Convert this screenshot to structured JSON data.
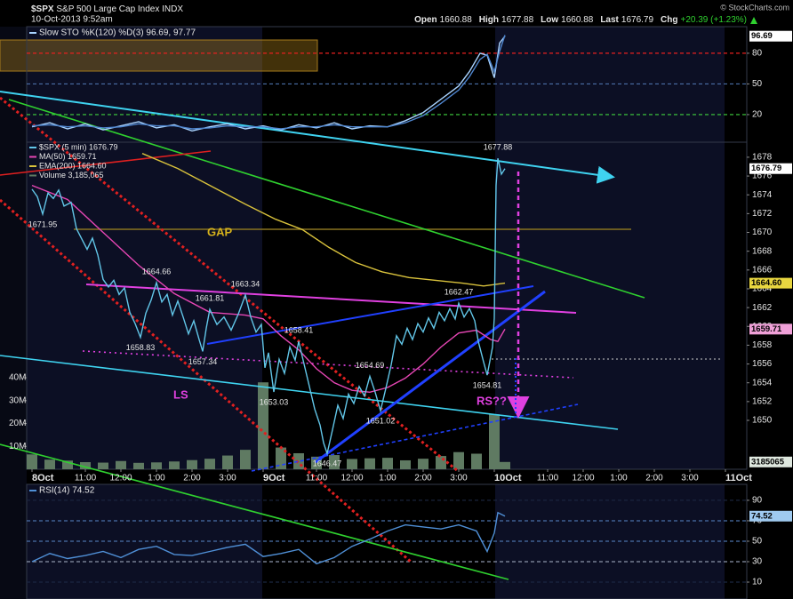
{
  "header": {
    "symbol": "$SPX",
    "title": "S&P 500 Large Cap Index INDX",
    "date": "10-Oct-2013 9:52am",
    "copyright": "© StockCharts.com",
    "quote": [
      {
        "label": "Open",
        "value": 1660.88
      },
      {
        "label": "High",
        "value": 1677.88
      },
      {
        "label": "Low",
        "value": 1660.88
      },
      {
        "label": "Last",
        "value": 1676.79
      },
      {
        "label": "Chg",
        "value": "+20.39 (+1.23%)"
      }
    ]
  },
  "chart_data": [
    {
      "type": "line",
      "legend": "Slow STO %K(120) %D(3) 96.69, 97.77",
      "xlim": [
        -0.15,
        20.1
      ],
      "ylim": [
        -7,
        106
      ],
      "yticks": [
        20,
        50,
        80
      ],
      "grid": true,
      "grid_colors": [
        "#3fd23f",
        "#4a6fa8",
        "#e8201f"
      ],
      "series": [
        {
          "color": "#a9d3ff",
          "tag_color": "#ffffff",
          "last_label": "96.69",
          "x": [
            0,
            0.5,
            1,
            1.5,
            2,
            2.5,
            3,
            3.5,
            4,
            4.5,
            5,
            5.5,
            6,
            6.5,
            7,
            7.5,
            8,
            8.5,
            9,
            9.5,
            10,
            10.5,
            11,
            11.5,
            12,
            12.3,
            12.6,
            12.8,
            13.0,
            13.15,
            13.3
          ],
          "values": [
            8,
            12,
            6,
            11,
            5,
            9,
            13,
            7,
            10,
            4,
            8,
            11,
            6,
            9,
            5,
            10,
            7,
            12,
            6,
            9,
            8,
            14,
            22,
            35,
            48,
            62,
            80,
            78,
            56,
            90,
            96.69
          ]
        },
        {
          "color": "#4f86cf",
          "x": [
            0,
            0.5,
            1,
            1.5,
            2,
            2.5,
            3,
            3.5,
            4,
            4.5,
            5,
            5.5,
            6,
            6.5,
            7,
            7.5,
            8,
            8.5,
            9,
            9.5,
            10,
            10.5,
            11,
            11.5,
            12,
            12.3,
            12.6,
            12.8,
            13.0,
            13.15,
            13.3
          ],
          "values": [
            9,
            10,
            8,
            9,
            7,
            8,
            11,
            9,
            9,
            6,
            7,
            9,
            8,
            8,
            6,
            8,
            8,
            10,
            8,
            8,
            8,
            12,
            19,
            31,
            44,
            57,
            74,
            79,
            62,
            82,
            97.77
          ]
        }
      ]
    },
    {
      "type": "line",
      "xlim": [
        -0.15,
        20.1
      ],
      "ylim": [
        1644.8,
        1679.6
      ],
      "yticks": [
        1650,
        1652,
        1654,
        1656,
        1658,
        1660,
        1662,
        1664,
        1666,
        1668,
        1670,
        1672,
        1674,
        1676,
        1678
      ],
      "y2lim": [
        0,
        143000000
      ],
      "y2ticks": [
        {
          "value": 10000000,
          "label": "10M"
        },
        {
          "value": 20000000,
          "label": "20M"
        },
        {
          "value": 30000000,
          "label": "30M"
        },
        {
          "value": 40000000,
          "label": "40M"
        }
      ],
      "xticks": [
        {
          "value": 0,
          "label": "8Oct"
        },
        {
          "value": 1.5,
          "label": "11:00"
        },
        {
          "value": 2.5,
          "label": "12:00"
        },
        {
          "value": 3.5,
          "label": "1:00"
        },
        {
          "value": 4.5,
          "label": "2:00"
        },
        {
          "value": 5.5,
          "label": "3:00"
        },
        {
          "value": 6.5,
          "label": "9Oct"
        },
        {
          "value": 8,
          "label": "11:00"
        },
        {
          "value": 9,
          "label": "12:00"
        },
        {
          "value": 10,
          "label": "1:00"
        },
        {
          "value": 11,
          "label": "2:00"
        },
        {
          "value": 12,
          "label": "3:00"
        },
        {
          "value": 13,
          "label": "10Oct"
        },
        {
          "value": 14.5,
          "label": "11:00"
        },
        {
          "value": 15.5,
          "label": "12:00"
        },
        {
          "value": 16.5,
          "label": "1:00"
        },
        {
          "value": 17.5,
          "label": "2:00"
        },
        {
          "value": 18.5,
          "label": "3:00"
        },
        {
          "value": 19.5,
          "label": "11Oct"
        }
      ],
      "annotations": {
        "gap": "GAP",
        "ls": "LS",
        "rs": "RS??"
      },
      "series": [
        {
          "name": "Volume 3,185,065",
          "axis": "y2",
          "style": "bar",
          "color": "#5f7a62",
          "tag_color": "#dfe8df",
          "last_label": "3185065",
          "x": [
            0,
            0.5,
            1,
            1.5,
            2,
            2.5,
            3,
            3.5,
            4,
            4.5,
            5,
            5.5,
            6,
            6.5,
            7,
            7.5,
            8,
            8.5,
            9,
            9.5,
            10,
            10.5,
            11,
            11.5,
            12,
            12.5,
            13.0,
            13.3
          ],
          "values": [
            6500000,
            4200000,
            3800000,
            3100000,
            2900000,
            3600000,
            2800000,
            3000000,
            3400000,
            4000000,
            4600000,
            6000000,
            8500000,
            38000000,
            9500000,
            7000000,
            5500000,
            6200000,
            4500000,
            4800000,
            5000000,
            3900000,
            4600000,
            5800000,
            7500000,
            6800000,
            24000000,
            3185065
          ]
        },
        {
          "name": "EMA(200) 1664.60",
          "color": "#d9c23c",
          "tag_color": "#e8d640",
          "last_label": "1664.60",
          "x": [
            3.1,
            4.1,
            5.1,
            6.0,
            6.85,
            7.6,
            8.35,
            9.1,
            9.85,
            10.6,
            11.35,
            12.1,
            12.7,
            13.3
          ],
          "values": [
            1678.4,
            1676.8,
            1674.8,
            1673.0,
            1671.4,
            1670.3,
            1668.4,
            1666.8,
            1665.8,
            1665.2,
            1664.9,
            1664.6,
            1664.3,
            1664.6
          ]
        },
        {
          "name": "MA(50) 1659.71",
          "color": "#e646b4",
          "tag_color": "#f0a0d8",
          "last_label": "1659.71",
          "x": [
            0,
            1,
            2,
            3,
            4,
            5,
            6,
            6.5,
            7,
            7.5,
            8,
            8.5,
            9,
            9.5,
            10,
            10.5,
            11,
            11.5,
            12,
            12.5,
            12.9,
            13.1,
            13.3
          ],
          "values": [
            1675.0,
            1673.5,
            1670.0,
            1666.5,
            1663.5,
            1661.5,
            1661.2,
            1660.8,
            1659.0,
            1657.5,
            1655.5,
            1654.0,
            1653.2,
            1653.0,
            1653.5,
            1654.5,
            1656.0,
            1657.8,
            1659.3,
            1659.6,
            1658.6,
            1658.4,
            1659.71
          ]
        },
        {
          "name": "$SPX (5 min) 1676.79",
          "color": "#62c6e8",
          "tag_color": "#ffffff",
          "last_label": "1676.79",
          "x": [
            0,
            0.15,
            0.3,
            0.45,
            0.6,
            0.75,
            0.9,
            1.1,
            1.25,
            1.4,
            1.55,
            1.7,
            1.85,
            2.0,
            2.15,
            2.3,
            2.45,
            2.6,
            2.75,
            2.9,
            3.05,
            3.2,
            3.35,
            3.5,
            3.65,
            3.8,
            3.95,
            4.1,
            4.25,
            4.4,
            4.55,
            4.7,
            4.8,
            4.9,
            5.0,
            5.2,
            5.4,
            5.6,
            5.8,
            6.0,
            6.15,
            6.3,
            6.45,
            6.55,
            6.65,
            6.8,
            6.95,
            7.1,
            7.25,
            7.4,
            7.5,
            7.65,
            7.8,
            7.95,
            8.1,
            8.2,
            8.3,
            8.45,
            8.6,
            8.75,
            8.9,
            9.05,
            9.2,
            9.35,
            9.5,
            9.65,
            9.8,
            9.95,
            10.1,
            10.25,
            10.4,
            10.55,
            10.7,
            10.85,
            11.0,
            11.15,
            11.3,
            11.45,
            11.6,
            11.75,
            11.9,
            12.0,
            12.15,
            12.3,
            12.45,
            12.55,
            12.7,
            12.8,
            12.95,
            13.0,
            13.05,
            13.1,
            13.2,
            13.3
          ],
          "values": [
            1674.6,
            1673.8,
            1671.95,
            1674.2,
            1673.6,
            1674.5,
            1672.8,
            1673.2,
            1670.4,
            1669.3,
            1668.2,
            1669.4,
            1667.6,
            1665.0,
            1664.2,
            1664.9,
            1663.4,
            1664.1,
            1661.5,
            1660.3,
            1658.83,
            1661.4,
            1662.8,
            1664.66,
            1662.6,
            1663.4,
            1661.2,
            1662.7,
            1661.0,
            1659.2,
            1660.6,
            1658.6,
            1657.34,
            1659.8,
            1661.81,
            1660.2,
            1661.0,
            1659.6,
            1661.3,
            1663.34,
            1661.0,
            1659.4,
            1660.2,
            1655.6,
            1657.2,
            1653.03,
            1656.5,
            1655.0,
            1657.8,
            1656.4,
            1658.41,
            1656.0,
            1653.6,
            1651.2,
            1649.5,
            1647.6,
            1646.47,
            1649.0,
            1651.6,
            1650.2,
            1652.8,
            1651.8,
            1653.6,
            1652.6,
            1654.69,
            1653.0,
            1651.02,
            1653.4,
            1655.9,
            1659.0,
            1658.1,
            1659.8,
            1658.6,
            1660.3,
            1659.4,
            1660.9,
            1659.8,
            1661.5,
            1660.6,
            1661.9,
            1660.8,
            1662.47,
            1661.0,
            1661.9,
            1660.6,
            1658.4,
            1656.2,
            1654.81,
            1657.8,
            1660.88,
            1675.0,
            1677.88,
            1676.2,
            1676.79
          ],
          "value_labels": [
            null,
            null,
            "1671.95",
            null,
            null,
            null,
            null,
            null,
            null,
            null,
            null,
            null,
            null,
            null,
            null,
            null,
            null,
            null,
            null,
            null,
            "1658.83",
            null,
            null,
            "1664.66",
            null,
            null,
            null,
            null,
            null,
            null,
            null,
            null,
            "1657.34",
            null,
            "1661.81",
            null,
            null,
            null,
            null,
            "1663.34",
            null,
            null,
            null,
            null,
            null,
            "1653.03",
            null,
            null,
            null,
            null,
            "1658.41",
            null,
            null,
            null,
            null,
            null,
            "1646.47",
            null,
            null,
            null,
            null,
            null,
            null,
            null,
            "1654.69",
            null,
            "1651.02",
            null,
            null,
            null,
            null,
            null,
            null,
            null,
            null,
            null,
            null,
            null,
            null,
            null,
            null,
            "1662.47",
            null,
            null,
            null,
            null,
            null,
            "1654.81",
            null,
            null,
            null,
            "1677.88",
            null,
            null
          ]
        }
      ]
    },
    {
      "type": "line",
      "legend": "RSI(14) 74.52",
      "xlim": [
        -0.15,
        20.1
      ],
      "ylim": [
        -6.5,
        105.6
      ],
      "yticks": [
        10,
        30,
        50,
        70,
        90
      ],
      "grid": true,
      "grid_colors": [
        "#1b2640",
        "#8a93a8",
        "#4a6fa8",
        "#4a6fa8",
        "#1b2640"
      ],
      "series": [
        {
          "color": "#4f8fd6",
          "tag_color": "#9fcaf0",
          "last_label": "74.52",
          "x": [
            0,
            0.5,
            1,
            1.5,
            2,
            2.5,
            3,
            3.5,
            4,
            4.5,
            5,
            5.5,
            6,
            6.5,
            7,
            7.5,
            8,
            8.5,
            9,
            9.5,
            10,
            10.5,
            11,
            11.5,
            12,
            12.5,
            12.8,
            13.0,
            13.1,
            13.3
          ],
          "values": [
            30,
            38,
            33,
            36,
            40,
            34,
            42,
            45,
            37,
            36,
            40,
            44,
            47,
            35,
            38,
            42,
            28,
            34,
            45,
            52,
            60,
            66,
            64,
            62,
            66,
            60,
            40,
            58,
            78,
            74.52
          ]
        }
      ]
    }
  ]
}
